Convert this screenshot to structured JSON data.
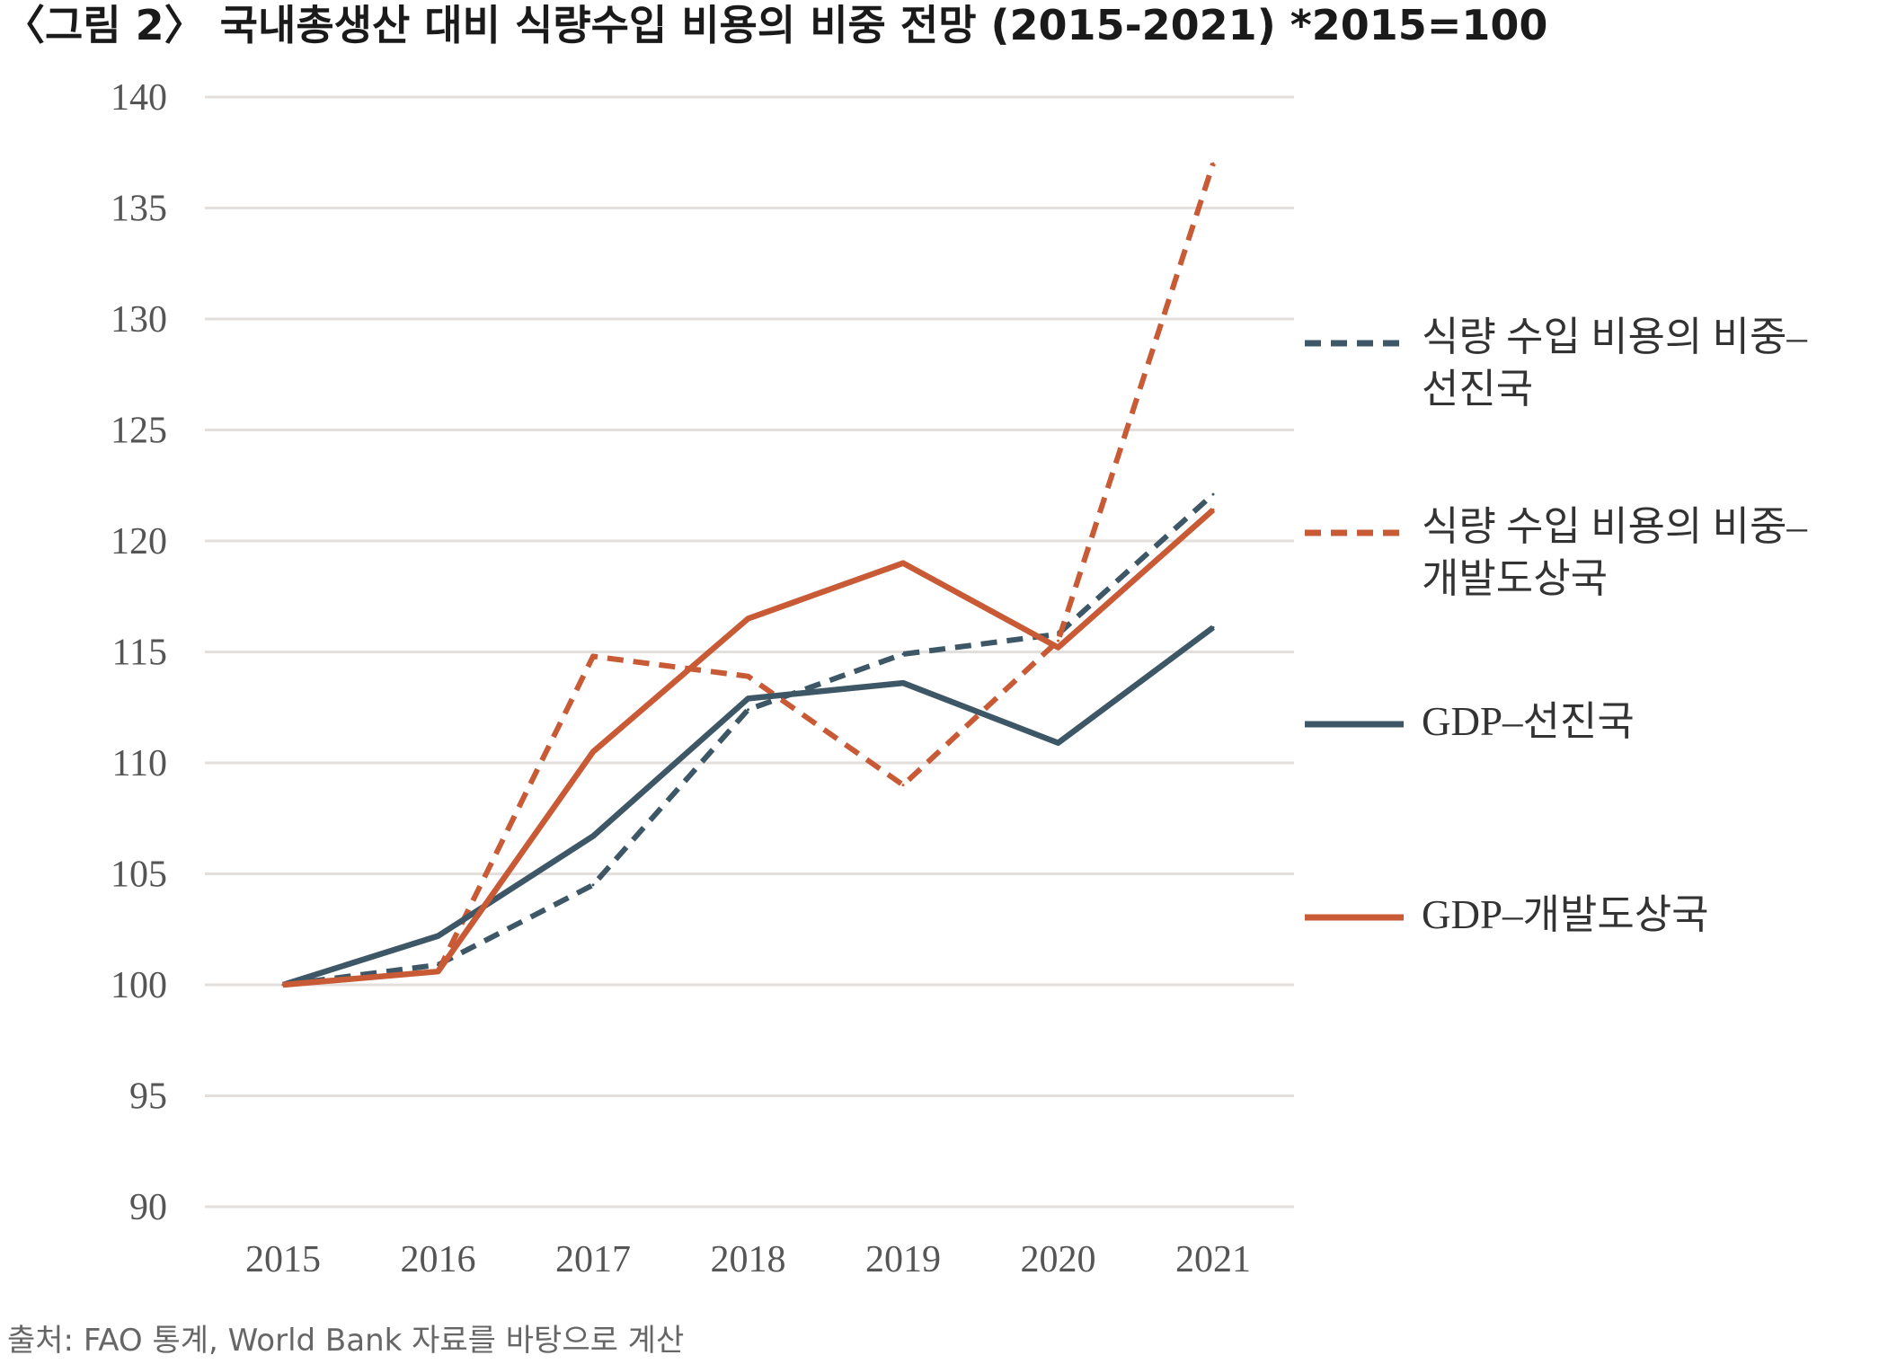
{
  "figure": {
    "title": "〈그림 2〉 국내총생산 대비 식량수입 비용의 비중 전망 (2015-2021)  *2015=100",
    "source": "출처: FAO 통계, World Bank 자료를 바탕으로 계산"
  },
  "chart_data": {
    "type": "line",
    "title": "〈그림 2〉 국내총생산 대비 식량수입 비용의 비중 전망 (2015-2021)  *2015=100",
    "xlabel": "",
    "ylabel": "",
    "x": [
      "2015",
      "2016",
      "2017",
      "2018",
      "2019",
      "2020",
      "2021"
    ],
    "y_ticks": [
      "90",
      "95",
      "100",
      "105",
      "110",
      "115",
      "120",
      "125",
      "130",
      "135",
      "140"
    ],
    "ylim": [
      90,
      140
    ],
    "grid": "horizontal",
    "legend_position": "right",
    "series": [
      {
        "name_lines": [
          "식량 수입 비용의 비중–",
          "선진국"
        ],
        "style": "dashed",
        "color": "#3d5766",
        "values": [
          100,
          100.9,
          104.5,
          112.4,
          114.9,
          115.8,
          122.1
        ]
      },
      {
        "name_lines": [
          "식량 수입 비용의 비중–",
          "개발도상국"
        ],
        "style": "dashed",
        "color": "#c95a36",
        "values": [
          100,
          100.6,
          114.8,
          113.9,
          109.0,
          115.5,
          137.0
        ]
      },
      {
        "name_lines": [
          "GDP–선진국"
        ],
        "style": "solid",
        "color": "#3d5766",
        "values": [
          100,
          102.2,
          106.7,
          112.9,
          113.6,
          110.9,
          116.1
        ]
      },
      {
        "name_lines": [
          "GDP–개발도상국"
        ],
        "style": "solid",
        "color": "#c95a36",
        "values": [
          100,
          100.6,
          110.5,
          116.5,
          119.0,
          115.2,
          121.4
        ]
      }
    ]
  }
}
